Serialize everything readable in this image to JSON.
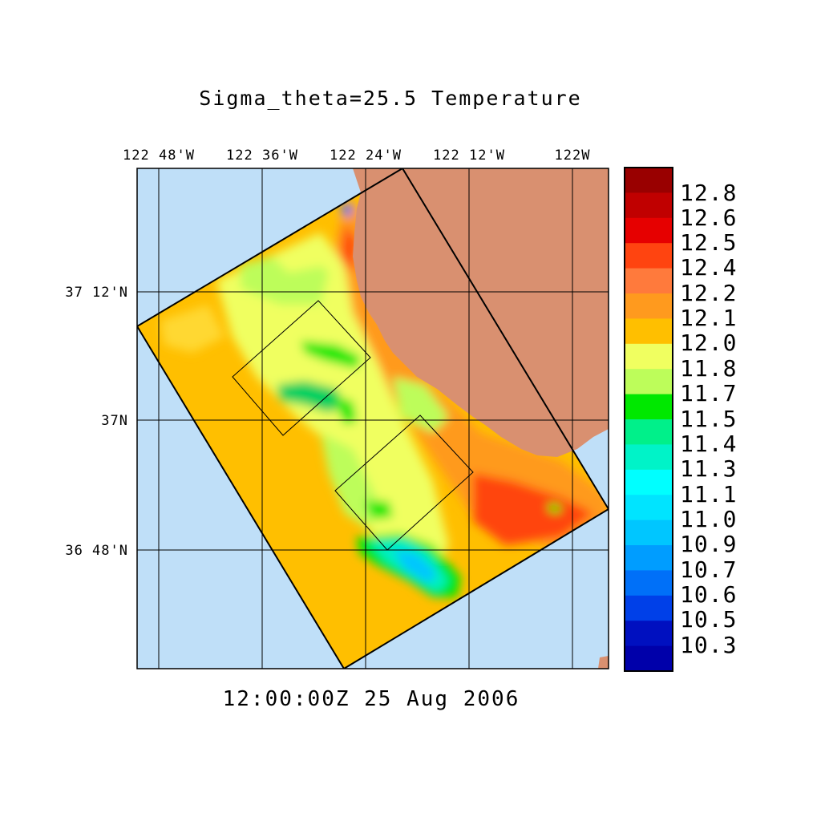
{
  "title": "Sigma_theta=25.5 Temperature",
  "timestamp": "12:00:00Z  25 Aug 2006",
  "axes": {
    "longitude_labels": [
      "122 48'W",
      "122 36'W",
      "122 24'W",
      "122 12'W",
      "122W"
    ],
    "latitude_labels": [
      "37 12'N",
      "37N",
      "36 48'N"
    ]
  },
  "colorbar": {
    "labels": [
      "12.8",
      "12.6",
      "12.5",
      "12.4",
      "12.2",
      "12.1",
      "12.0",
      "11.8",
      "11.7",
      "11.5",
      "11.4",
      "11.3",
      "11.1",
      "11.0",
      "10.9",
      "10.7",
      "10.6",
      "10.5",
      "10.3"
    ],
    "colors_top_to_bottom": [
      "#990000",
      "#c00000",
      "#e60000",
      "#ff4410",
      "#ff7a3c",
      "#ff9a1e",
      "#ffbf00",
      "#f0ff60",
      "#bdfd5a",
      "#00e800",
      "#00f08a",
      "#00f3c8",
      "#00ffff",
      "#00e4ff",
      "#00c6ff",
      "#009dff",
      "#0070f8",
      "#0040e8",
      "#0010c0",
      "#0000aa"
    ]
  },
  "colors": {
    "ocean": "#bfdff8",
    "land": "#d99070",
    "field_base": "#ffbf00"
  }
}
